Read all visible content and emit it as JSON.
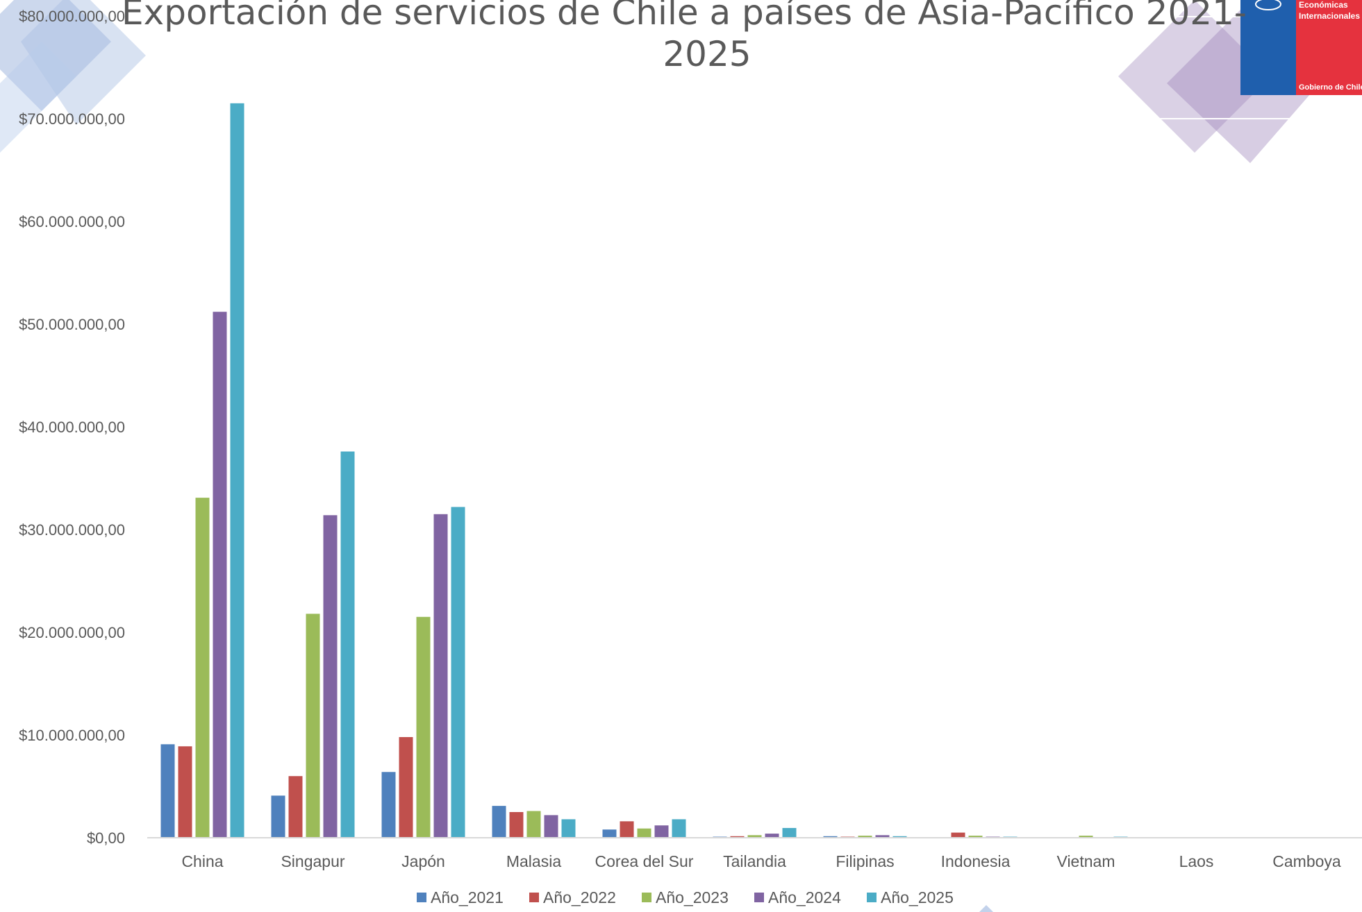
{
  "chart_data": {
    "type": "bar",
    "title": "Exportación de servicios de Chile a países de Asia-Pacífico 2021-2025",
    "title_lines": [
      "Exportación de servicios de Chile a países de Asia-Pacífico 2021-",
      "2025"
    ],
    "xlabel": "",
    "ylabel": "",
    "ylim": [
      0,
      80000000
    ],
    "y_ticks": [
      0,
      10000000,
      20000000,
      30000000,
      40000000,
      50000000,
      60000000,
      70000000,
      80000000
    ],
    "y_tick_labels": [
      "$0,00",
      "$10.000.000,00",
      "$20.000.000,00",
      "$30.000.000,00",
      "$40.000.000,00",
      "$50.000.000,00",
      "$60.000.000,00",
      "$70.000.000,00",
      "$80.000.000,00"
    ],
    "grid": false,
    "legend_position": "bottom",
    "categories": [
      "China",
      "Singapur",
      "Japón",
      "Malasia",
      "Corea del Sur",
      "Tailandia",
      "Filipinas",
      "Indonesia",
      "Vietnam",
      "Laos",
      "Camboya"
    ],
    "series": [
      {
        "name": "Año_2021",
        "color": "#4F81BD",
        "values": [
          9100000,
          4100000,
          6400000,
          3100000,
          800000,
          100000,
          150000,
          50000,
          0,
          0,
          0
        ]
      },
      {
        "name": "Año_2022",
        "color": "#C0504D",
        "values": [
          8900000,
          6000000,
          9800000,
          2500000,
          1600000,
          150000,
          100000,
          500000,
          0,
          0,
          0
        ]
      },
      {
        "name": "Año_2023",
        "color": "#9BBB59",
        "values": [
          33100000,
          21800000,
          21500000,
          2600000,
          900000,
          250000,
          200000,
          200000,
          200000,
          0,
          0
        ]
      },
      {
        "name": "Año_2024",
        "color": "#8064A2",
        "values": [
          51200000,
          31400000,
          31500000,
          2200000,
          1200000,
          400000,
          250000,
          100000,
          0,
          50000,
          0
        ]
      },
      {
        "name": "Año_2025",
        "color": "#4BACC6",
        "values": [
          71500000,
          37600000,
          32200000,
          1800000,
          1800000,
          950000,
          150000,
          100000,
          100000,
          0,
          0
        ]
      }
    ]
  },
  "logo": {
    "lines": [
      "Económicas",
      "Internacionales"
    ],
    "footer": "Gobierno de Chile",
    "blue": "#1F5FAD",
    "red": "#E5323E"
  }
}
